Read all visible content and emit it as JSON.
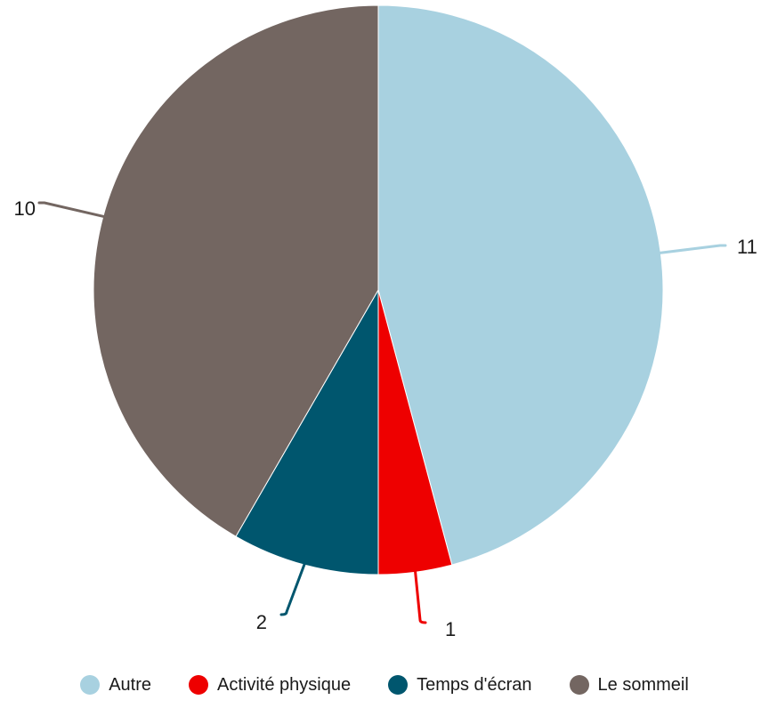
{
  "chart_data": {
    "type": "pie",
    "title": "",
    "categories": [
      "Autre",
      "Activité physique",
      "Temps d'écran",
      "Le sommeil"
    ],
    "values": [
      11,
      1,
      2,
      10
    ],
    "labels": [
      "11",
      "1",
      "2",
      "10"
    ],
    "colors": [
      "#a8d1e0",
      "#ee0000",
      "#00566e",
      "#736661"
    ],
    "start_angle": "12 o'clock",
    "direction": "clockwise",
    "legend_position": "bottom"
  },
  "legend": {
    "items": [
      {
        "label": "Autre",
        "color": "#a8d1e0"
      },
      {
        "label": "Activité physique",
        "color": "#ee0000"
      },
      {
        "label": "Temps d'écran",
        "color": "#00566e"
      },
      {
        "label": "Le sommeil",
        "color": "#736661"
      }
    ]
  }
}
